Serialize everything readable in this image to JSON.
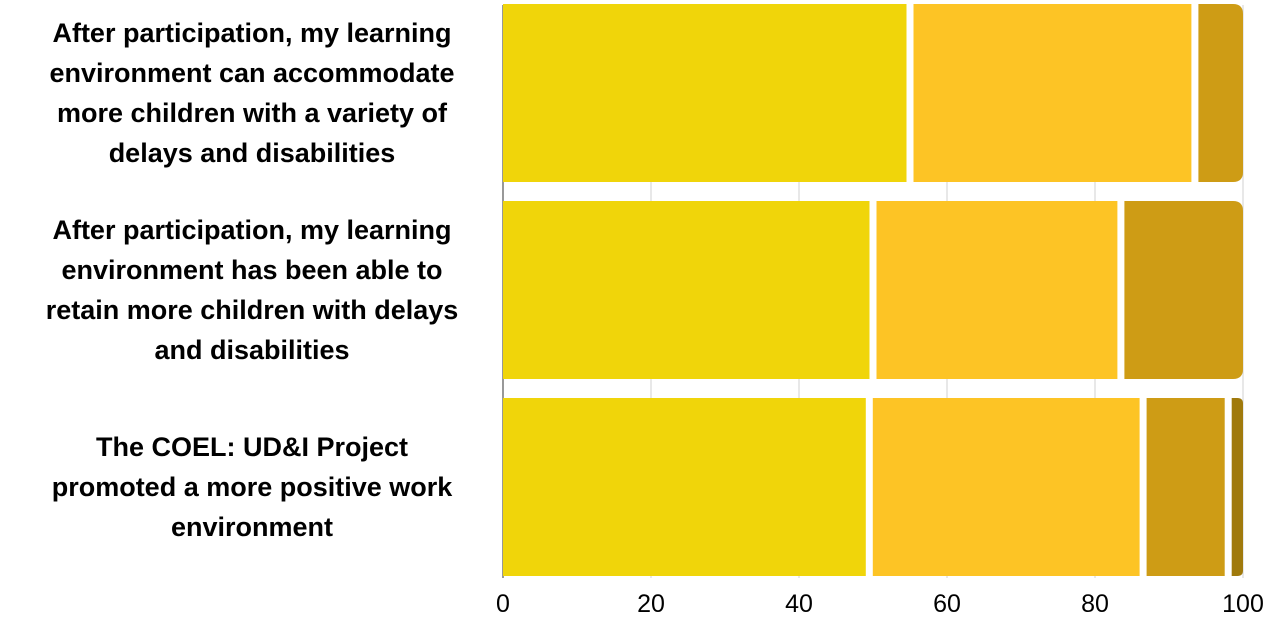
{
  "chart_data": {
    "type": "bar",
    "orientation": "horizontal",
    "stacked": true,
    "categories": [
      [
        "After participation, my learning",
        "environment can accommodate",
        "more children with a variety of",
        "delays and disabilities"
      ],
      [
        "After participation, my learning",
        "environment has been able to",
        "retain more children with delays",
        "and disabilities"
      ],
      [
        "The COEL: UD&I Project",
        "promoted a more positive work",
        "environment"
      ]
    ],
    "series": [
      {
        "color": "#F0D50A",
        "values": [
          55.0,
          50.0,
          49.5
        ]
      },
      {
        "color": "#FDC425",
        "values": [
          38.5,
          33.5,
          37.0
        ]
      },
      {
        "color": "#CE9C15",
        "values": [
          6.5,
          16.5,
          11.5
        ]
      },
      {
        "color": "#A07A0C",
        "values": [
          0,
          0,
          2.0
        ]
      }
    ],
    "xlim": [
      0,
      100
    ],
    "xticks": [
      "0",
      "20",
      "40",
      "60",
      "80",
      "100"
    ],
    "xlabel": "",
    "ylabel": "",
    "title": "",
    "grid": "vertical",
    "legend": "none"
  }
}
